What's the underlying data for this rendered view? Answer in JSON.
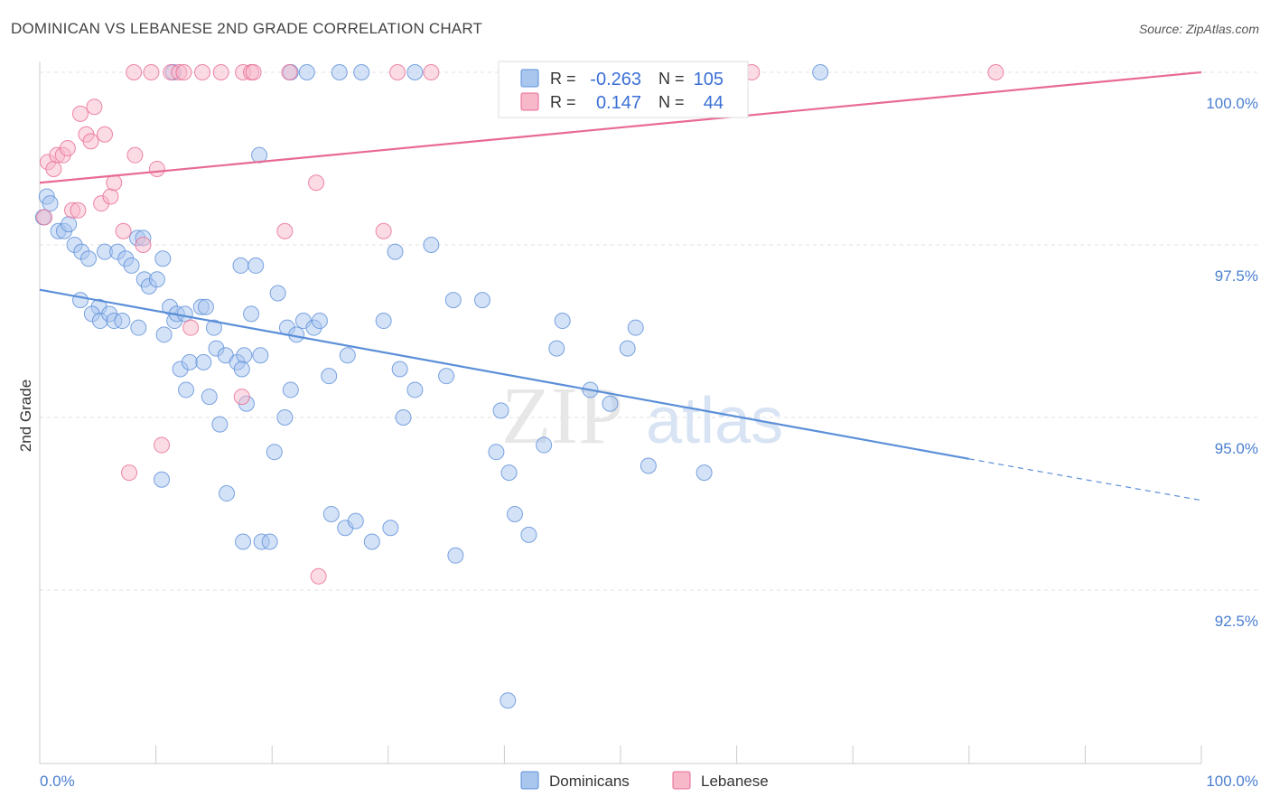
{
  "header": {
    "title": "DOMINICAN VS LEBANESE 2ND GRADE CORRELATION CHART",
    "source": "Source: ZipAtlas.com"
  },
  "watermark": {
    "zip": "ZIP",
    "atlas": "atlas"
  },
  "legend_box": {
    "rows": [
      {
        "r_label": "R =",
        "r_value": "-0.263",
        "n_label": "N =",
        "n_value": "105",
        "color": "#a9c6ef"
      },
      {
        "r_label": "R =",
        "r_value": "0.147",
        "n_label": "N =",
        "n_value": "44",
        "color": "#f7b8ca"
      }
    ]
  },
  "bottom_legend": [
    {
      "label": "Dominicans",
      "color": "#a9c6ef"
    },
    {
      "label": "Lebanese",
      "color": "#f7b8ca"
    }
  ],
  "chart_data": {
    "type": "scatter",
    "title": "DOMINICAN VS LEBANESE 2ND GRADE CORRELATION CHART",
    "xlabel": "",
    "ylabel": "2nd Grade",
    "xlim": [
      0,
      100
    ],
    "ylim": [
      90.6,
      100.3
    ],
    "x_tick_labels": [
      "0.0%",
      "100.0%"
    ],
    "y_ticks": [
      92.5,
      95.0,
      97.5,
      100.0
    ],
    "y_tick_labels": [
      "92.5%",
      "95.0%",
      "97.5%",
      "100.0%"
    ],
    "grid": "horizontal dashed",
    "legend_position": "top-center",
    "series": [
      {
        "name": "Dominicans",
        "color": "#5b8fd8",
        "fill": "#a9c6ef",
        "r": -0.263,
        "n": 105,
        "trend": {
          "x0": 0,
          "y0": 96.85,
          "x1": 80,
          "y1": 94.4,
          "dash_to_x": 100,
          "dash_to_y": 93.8
        },
        "points": [
          [
            0.3,
            97.9
          ],
          [
            0.6,
            98.2
          ],
          [
            0.9,
            98.1
          ],
          [
            1.6,
            97.7
          ],
          [
            2.1,
            97.7
          ],
          [
            2.5,
            97.8
          ],
          [
            3.0,
            97.5
          ],
          [
            3.6,
            97.4
          ],
          [
            4.2,
            97.3
          ],
          [
            5.6,
            97.4
          ],
          [
            6.7,
            97.4
          ],
          [
            7.4,
            97.3
          ],
          [
            7.9,
            97.2
          ],
          [
            8.4,
            97.6
          ],
          [
            8.9,
            97.6
          ],
          [
            3.5,
            96.7
          ],
          [
            5.1,
            96.6
          ],
          [
            4.5,
            96.5
          ],
          [
            5.2,
            96.4
          ],
          [
            6.0,
            96.5
          ],
          [
            6.4,
            96.4
          ],
          [
            7.1,
            96.4
          ],
          [
            8.5,
            96.3
          ],
          [
            9.0,
            97.0
          ],
          [
            9.4,
            96.9
          ],
          [
            10.1,
            97.0
          ],
          [
            10.6,
            97.3
          ],
          [
            11.2,
            96.6
          ],
          [
            11.6,
            96.4
          ],
          [
            11.8,
            96.5
          ],
          [
            12.5,
            96.5
          ],
          [
            13.9,
            96.6
          ],
          [
            14.3,
            96.6
          ],
          [
            15.0,
            96.3
          ],
          [
            15.2,
            96.0
          ],
          [
            16.0,
            95.9
          ],
          [
            17.0,
            95.8
          ],
          [
            17.6,
            95.9
          ],
          [
            17.3,
            97.2
          ],
          [
            18.6,
            97.2
          ],
          [
            18.2,
            96.5
          ],
          [
            19.0,
            95.9
          ],
          [
            20.5,
            96.8
          ],
          [
            21.3,
            96.3
          ],
          [
            21.6,
            95.4
          ],
          [
            10.7,
            96.2
          ],
          [
            12.1,
            95.7
          ],
          [
            12.6,
            95.4
          ],
          [
            12.9,
            95.8
          ],
          [
            14.1,
            95.8
          ],
          [
            14.6,
            95.3
          ],
          [
            15.5,
            94.9
          ],
          [
            17.4,
            95.7
          ],
          [
            17.8,
            95.2
          ],
          [
            18.9,
            98.8
          ],
          [
            20.2,
            94.5
          ],
          [
            21.1,
            95.0
          ],
          [
            22.1,
            96.2
          ],
          [
            22.7,
            96.4
          ],
          [
            23.6,
            96.3
          ],
          [
            24.1,
            96.4
          ],
          [
            24.9,
            95.6
          ],
          [
            26.3,
            93.4
          ],
          [
            27.2,
            93.5
          ],
          [
            28.6,
            93.2
          ],
          [
            29.6,
            96.4
          ],
          [
            30.2,
            93.4
          ],
          [
            31.0,
            95.7
          ],
          [
            31.3,
            95.0
          ],
          [
            32.3,
            95.4
          ],
          [
            30.6,
            97.4
          ],
          [
            33.7,
            97.5
          ],
          [
            35.0,
            95.6
          ],
          [
            35.6,
            96.7
          ],
          [
            35.8,
            93.0
          ],
          [
            38.1,
            96.7
          ],
          [
            39.7,
            95.1
          ],
          [
            39.3,
            94.5
          ],
          [
            40.9,
            93.6
          ],
          [
            40.4,
            94.2
          ],
          [
            42.1,
            93.3
          ],
          [
            43.4,
            94.6
          ],
          [
            44.5,
            96.0
          ],
          [
            45.0,
            96.4
          ],
          [
            47.4,
            95.4
          ],
          [
            49.1,
            95.2
          ],
          [
            50.6,
            96.0
          ],
          [
            51.3,
            96.3
          ],
          [
            52.4,
            94.3
          ],
          [
            57.2,
            94.2
          ],
          [
            10.5,
            94.1
          ],
          [
            16.1,
            93.9
          ],
          [
            17.5,
            93.2
          ],
          [
            19.1,
            93.2
          ],
          [
            19.8,
            93.2
          ],
          [
            11.5,
            100.0
          ],
          [
            21.6,
            100.0
          ],
          [
            23.0,
            100.0
          ],
          [
            25.8,
            100.0
          ],
          [
            27.7,
            100.0
          ],
          [
            32.3,
            100.0
          ],
          [
            67.2,
            100.0
          ],
          [
            40.3,
            90.9
          ],
          [
            25.1,
            93.6
          ],
          [
            26.5,
            95.9
          ]
        ]
      },
      {
        "name": "Lebanese",
        "color": "#e86a94",
        "fill": "#f7b8ca",
        "r": 0.147,
        "n": 44,
        "trend": {
          "x0": 0,
          "y0": 98.4,
          "x1": 100,
          "y1": 100.0
        },
        "points": [
          [
            0.4,
            97.9
          ],
          [
            0.7,
            98.7
          ],
          [
            1.2,
            98.6
          ],
          [
            1.5,
            98.8
          ],
          [
            2.0,
            98.8
          ],
          [
            2.4,
            98.9
          ],
          [
            2.8,
            98.0
          ],
          [
            3.3,
            98.0
          ],
          [
            3.5,
            99.4
          ],
          [
            4.0,
            99.1
          ],
          [
            4.4,
            99.0
          ],
          [
            4.7,
            99.5
          ],
          [
            5.3,
            98.1
          ],
          [
            5.6,
            99.1
          ],
          [
            6.1,
            98.2
          ],
          [
            6.4,
            98.4
          ],
          [
            7.2,
            97.7
          ],
          [
            8.2,
            98.8
          ],
          [
            8.9,
            97.5
          ],
          [
            10.1,
            98.6
          ],
          [
            10.5,
            94.6
          ],
          [
            7.7,
            94.2
          ],
          [
            13.0,
            96.3
          ],
          [
            17.4,
            95.3
          ],
          [
            21.1,
            97.7
          ],
          [
            23.8,
            98.4
          ],
          [
            24.0,
            92.7
          ],
          [
            29.6,
            97.7
          ],
          [
            8.1,
            100.0
          ],
          [
            9.6,
            100.0
          ],
          [
            11.3,
            100.0
          ],
          [
            12.0,
            100.0
          ],
          [
            12.4,
            100.0
          ],
          [
            14.0,
            100.0
          ],
          [
            15.6,
            100.0
          ],
          [
            17.5,
            100.0
          ],
          [
            18.2,
            100.0
          ],
          [
            18.4,
            100.0
          ],
          [
            21.5,
            100.0
          ],
          [
            30.8,
            100.0
          ],
          [
            33.7,
            100.0
          ],
          [
            50.9,
            100.0
          ],
          [
            61.3,
            100.0
          ],
          [
            82.3,
            100.0
          ]
        ]
      }
    ]
  }
}
